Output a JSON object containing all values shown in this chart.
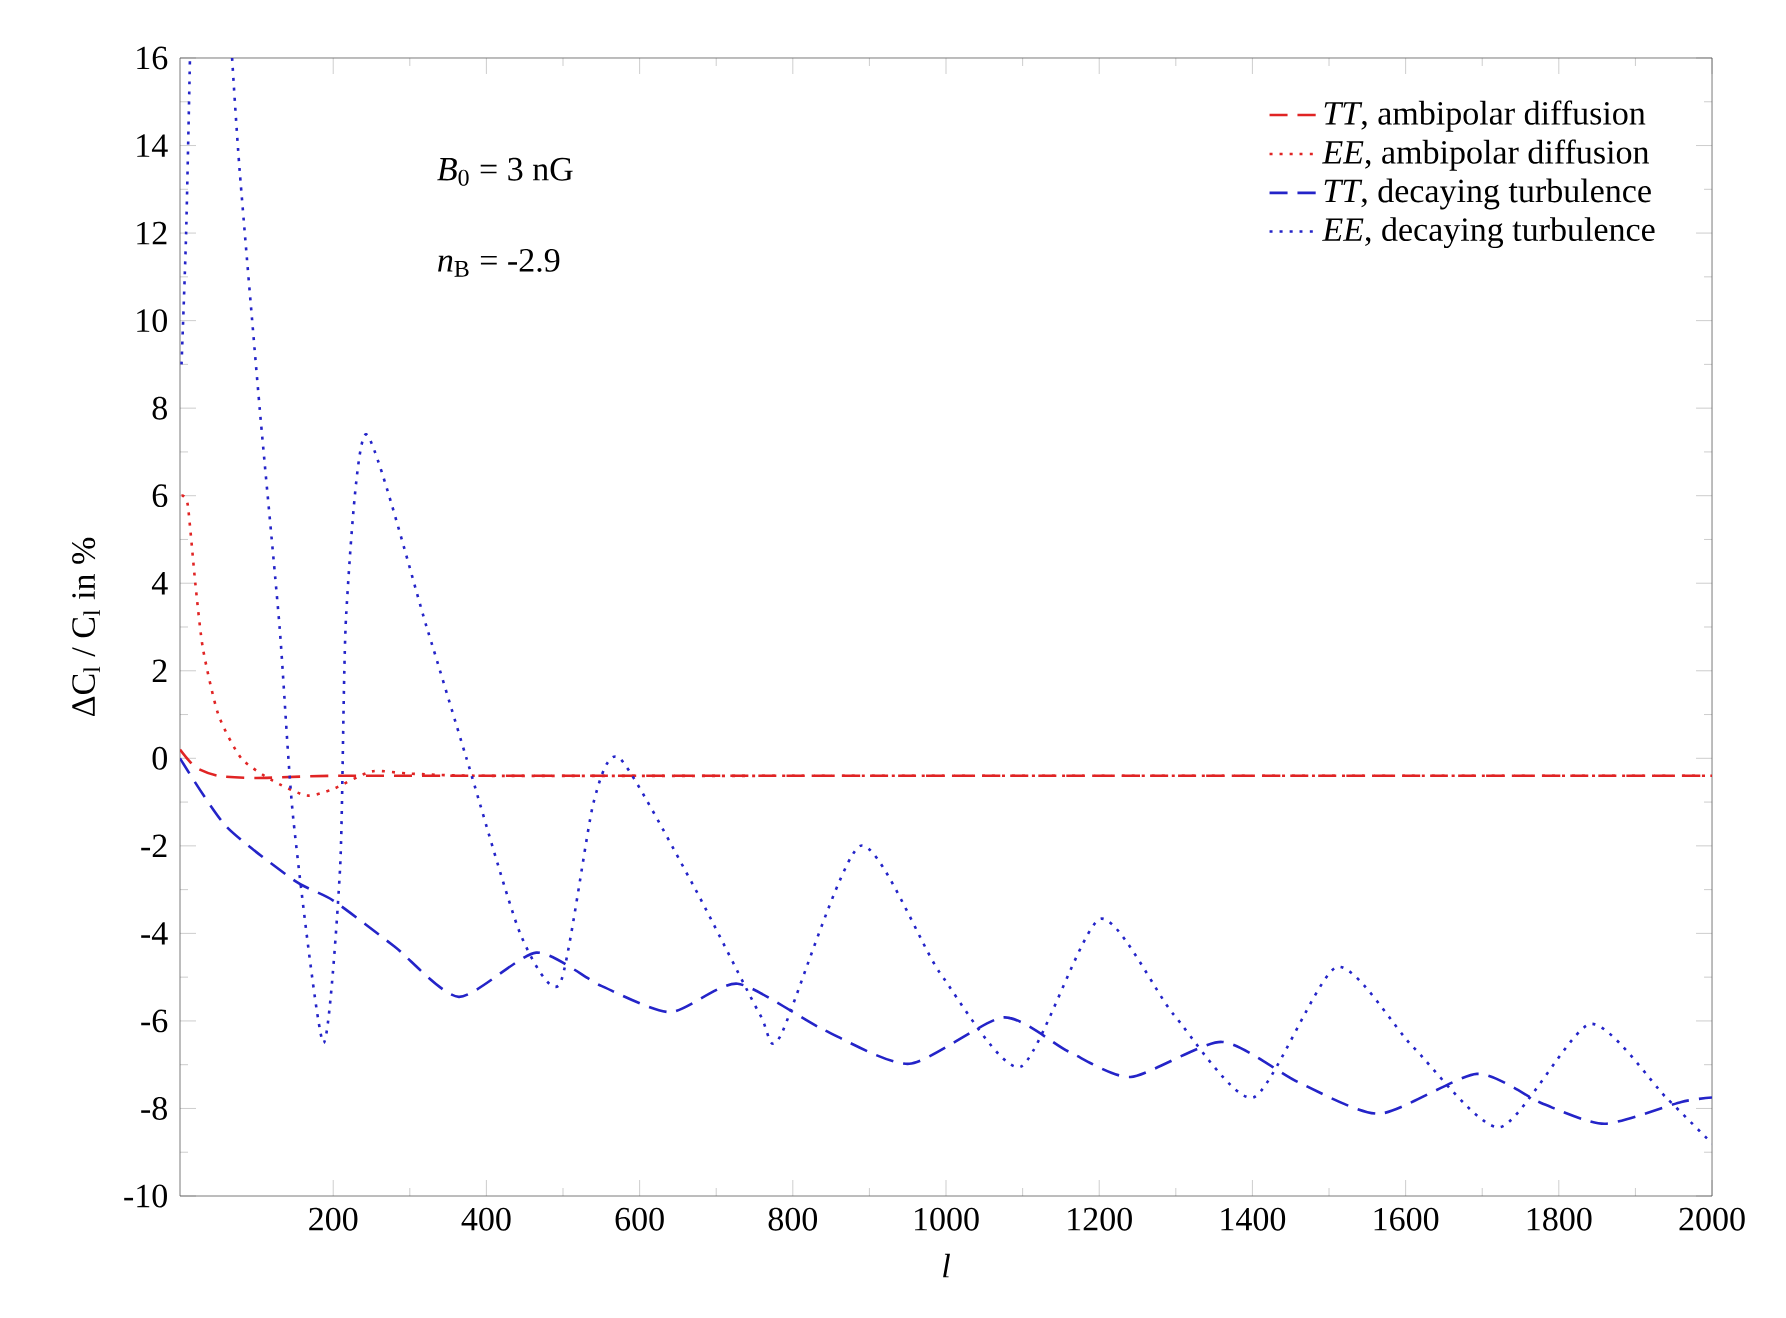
{
  "chart_data": {
    "type": "line",
    "xlabel": "l",
    "ylabel": "ΔC$_{l}$ / C$_{l}$ in %",
    "xlim": [
      0,
      2000
    ],
    "xticks": [
      200,
      400,
      600,
      800,
      1000,
      1200,
      1400,
      1600,
      1800,
      2000
    ],
    "ylim": [
      -10,
      16
    ],
    "yticks": [
      -10,
      -8,
      -6,
      -4,
      -2,
      0,
      2,
      4,
      6,
      8,
      10,
      12,
      14,
      16
    ],
    "legend": "top right",
    "grid": false,
    "annotations": [
      "*B*$_{0}$ = 3 nG",
      "*n*$_{B}$ = -2.9"
    ],
    "series": [
      {
        "name": "*TT*, ambipolar diffusion",
        "color": "#e02424",
        "line_style": "dashed",
        "x": [
          0,
          20,
          50,
          100,
          200,
          400,
          800,
          1200,
          1600,
          2000
        ],
        "values": [
          0.2,
          -0.2,
          -0.4,
          -0.45,
          -0.4,
          -0.4,
          -0.4,
          -0.4,
          -0.4,
          -0.4
        ]
      },
      {
        "name": "*EE*, ambipolar diffusion",
        "color": "#e02424",
        "line_style": "dotted",
        "x": [
          2,
          10,
          20,
          30,
          50,
          80,
          120,
          165,
          200,
          250,
          300,
          400,
          800,
          1200,
          1600,
          2000
        ],
        "values": [
          6,
          5.8,
          4,
          2.5,
          1,
          0,
          -0.5,
          -0.85,
          -0.7,
          -0.3,
          -0.35,
          -0.4,
          -0.4,
          -0.4,
          -0.4,
          -0.4
        ]
      },
      {
        "name": "*TT*, decaying turbulence",
        "color": "#2424c8",
        "line_style": "dashed",
        "x": [
          0,
          60,
          150,
          200,
          280,
          364,
          465,
          550,
          640,
          728,
          840,
          952,
          1075,
          1160,
          1241,
          1360,
          1460,
          1566,
          1693,
          1780,
          1860,
          1960,
          2000
        ],
        "values": [
          0,
          -1.55,
          -2.8,
          -3.25,
          -4.3,
          -5.45,
          -4.44,
          -5.2,
          -5.8,
          -5.15,
          -6.2,
          -6.98,
          -5.92,
          -6.7,
          -7.28,
          -6.48,
          -7.4,
          -8.12,
          -7.21,
          -7.9,
          -8.35,
          -7.85,
          -7.75
        ]
      },
      {
        "name": "*EE*, decaying turbulence",
        "color": "#2424c8",
        "line_style": "dotted",
        "x": [
          2,
          8,
          13,
          40,
          68,
          78,
          104,
          130,
          148,
          187,
          209,
          217,
          243,
          322,
          374,
          444,
          496,
          540,
          574,
          670,
          757,
          783,
          888,
          992,
          1097,
          1201,
          1297,
          1401,
          1510,
          1610,
          1723,
          1841,
          1940,
          2000
        ],
        "values": [
          9,
          12,
          16,
          null,
          16,
          13.4,
          8,
          3,
          -1.4,
          -6.5,
          -2.5,
          3.3,
          7.4,
          3,
          0,
          -4,
          -5.15,
          -1,
          0,
          -2.9,
          -5.85,
          -6.37,
          -2,
          -4.9,
          -7.05,
          -3.67,
          -5.85,
          -7.75,
          -4.77,
          -6.6,
          -8.43,
          -6.07,
          -7.75,
          -8.8
        ]
      }
    ]
  }
}
